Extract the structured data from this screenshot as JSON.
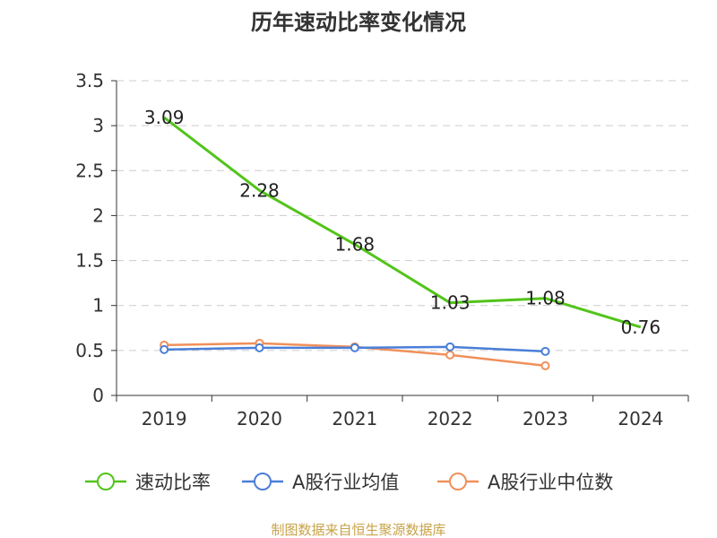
{
  "chart_data": {
    "type": "line",
    "title": "历年速动比率变化情况",
    "categories": [
      "2019",
      "2020",
      "2021",
      "2022",
      "2023",
      "2024"
    ],
    "ylim": [
      0,
      3.5
    ],
    "yticks": [
      "0",
      "0.5",
      "1",
      "1.5",
      "2",
      "2.5",
      "3",
      "3.5"
    ],
    "grid": true,
    "legend_position": "bottom",
    "series": [
      {
        "name": "速动比率",
        "color": "#52c41a",
        "values": [
          3.09,
          2.28,
          1.68,
          1.03,
          1.08,
          0.76
        ],
        "labels": [
          "3.09",
          "2.28",
          "1.68",
          "1.03",
          "1.08",
          "0.76"
        ]
      },
      {
        "name": "A股行业均值",
        "color": "#4a7fd8",
        "values": [
          0.51,
          0.53,
          0.53,
          0.54,
          0.49,
          null
        ]
      },
      {
        "name": "A股行业中位数",
        "color": "#f0905a",
        "values": [
          0.56,
          0.58,
          0.54,
          0.45,
          0.33,
          null
        ]
      }
    ],
    "source": "制图数据来自恒生聚源数据库"
  }
}
